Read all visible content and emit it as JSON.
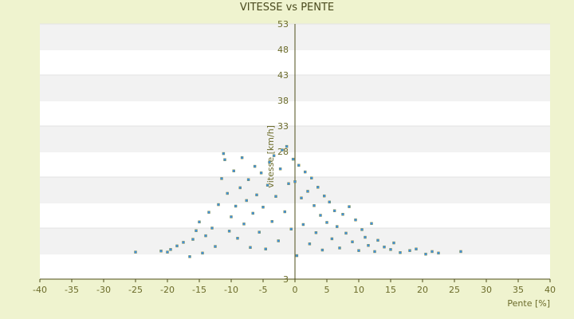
{
  "chart_data": {
    "type": "scatter",
    "title": "VITESSE vs PENTE",
    "xlabel": "Pente [%]",
    "ylabel": "vitesse [km/h]",
    "xlim": [
      -40,
      40
    ],
    "ylim": [
      3,
      53
    ],
    "x_ticks": [
      -40,
      -35,
      -30,
      -25,
      -20,
      -15,
      -10,
      -5,
      0,
      5,
      10,
      15,
      20,
      25,
      30,
      35,
      40
    ],
    "y_ticks": [
      3,
      8,
      13,
      18,
      23,
      28,
      33,
      38,
      43,
      48,
      53
    ],
    "y_tick_labels": [
      "3",
      "",
      "",
      "",
      "",
      "28",
      "33",
      "38",
      "43",
      "48",
      "53"
    ],
    "grid": "horizontal alternating bands",
    "colors": {
      "background": "#eff3cf",
      "plot_area": "#ffffff",
      "band": "#f2f2f2",
      "axis": "#4d4d1a",
      "marker_fill": "#3d8fe0",
      "marker_edge": "#8a8a2a"
    },
    "series": [
      {
        "values_note": "",
        "points": [
          [
            -25,
            8.3
          ],
          [
            -21,
            8.5
          ],
          [
            -20,
            8.3
          ],
          [
            -19.5,
            8.8
          ],
          [
            -18.5,
            9.5
          ],
          [
            -17.5,
            10.2
          ],
          [
            -16.5,
            7.4
          ],
          [
            -16,
            10.8
          ],
          [
            -15.5,
            12.5
          ],
          [
            -15,
            14.2
          ],
          [
            -14.5,
            8.1
          ],
          [
            -14,
            11.5
          ],
          [
            -13.5,
            16.1
          ],
          [
            -13,
            13.0
          ],
          [
            -12.5,
            9.4
          ],
          [
            -12,
            17.6
          ],
          [
            -11.5,
            22.7
          ],
          [
            -11.2,
            27.6
          ],
          [
            -11,
            26.4
          ],
          [
            -10.6,
            19.8
          ],
          [
            -10.3,
            12.4
          ],
          [
            -10,
            15.2
          ],
          [
            -9.6,
            24.2
          ],
          [
            -9.3,
            17.3
          ],
          [
            -9,
            11.0
          ],
          [
            -8.6,
            20.9
          ],
          [
            -8.3,
            26.8
          ],
          [
            -8,
            13.8
          ],
          [
            -7.6,
            18.4
          ],
          [
            -7.3,
            22.5
          ],
          [
            -7,
            9.2
          ],
          [
            -6.6,
            15.9
          ],
          [
            -6.3,
            25.1
          ],
          [
            -6,
            19.5
          ],
          [
            -5.6,
            12.2
          ],
          [
            -5.3,
            23.8
          ],
          [
            -5,
            17.1
          ],
          [
            -4.6,
            8.9
          ],
          [
            -4.3,
            21.4
          ],
          [
            -4,
            25.9
          ],
          [
            -3.6,
            14.3
          ],
          [
            -3.3,
            27.2
          ],
          [
            -3,
            19.2
          ],
          [
            -2.6,
            10.5
          ],
          [
            -2.3,
            24.6
          ],
          [
            -2,
            28.3
          ],
          [
            -1.6,
            16.2
          ],
          [
            -1.3,
            29.0
          ],
          [
            -1,
            21.7
          ],
          [
            -0.6,
            12.8
          ],
          [
            -0.3,
            26.5
          ],
          [
            0,
            22.1
          ],
          [
            0.3,
            7.6
          ],
          [
            0.6,
            25.3
          ],
          [
            1,
            18.9
          ],
          [
            1.3,
            13.7
          ],
          [
            1.6,
            24.0
          ],
          [
            2,
            20.2
          ],
          [
            2.3,
            9.9
          ],
          [
            2.6,
            22.8
          ],
          [
            3,
            17.4
          ],
          [
            3.3,
            12.1
          ],
          [
            3.6,
            21.0
          ],
          [
            4,
            15.5
          ],
          [
            4.3,
            8.7
          ],
          [
            4.6,
            19.3
          ],
          [
            5,
            14.1
          ],
          [
            5.4,
            18.1
          ],
          [
            5.8,
            10.9
          ],
          [
            6.2,
            16.4
          ],
          [
            6.6,
            13.3
          ],
          [
            7,
            9.1
          ],
          [
            7.5,
            15.7
          ],
          [
            8,
            12.0
          ],
          [
            8.5,
            17.2
          ],
          [
            9,
            10.3
          ],
          [
            9.5,
            14.6
          ],
          [
            10,
            8.6
          ],
          [
            10.5,
            12.7
          ],
          [
            11,
            11.2
          ],
          [
            11.5,
            9.6
          ],
          [
            12,
            13.9
          ],
          [
            12.5,
            8.4
          ],
          [
            13,
            10.6
          ],
          [
            14,
            9.3
          ],
          [
            15,
            8.8
          ],
          [
            15.5,
            10.1
          ],
          [
            16.5,
            8.2
          ],
          [
            18,
            8.6
          ],
          [
            19,
            8.9
          ],
          [
            20.5,
            7.9
          ],
          [
            21.5,
            8.4
          ],
          [
            22.5,
            8.1
          ],
          [
            26,
            8.4
          ]
        ]
      }
    ]
  }
}
